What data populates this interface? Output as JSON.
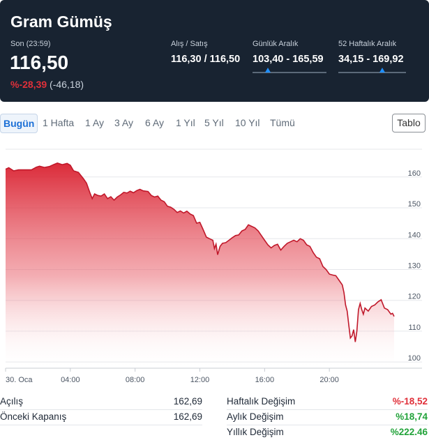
{
  "header": {
    "title": "Gram Gümüş",
    "last_label": "Son (23:59)",
    "last_price": "116,50",
    "change_pct": "%-28,39",
    "change_abs": "(-46,18)",
    "bid_ask": {
      "label": "Alış / Satış",
      "value": "116,30 / 116,50"
    },
    "daily_range": {
      "label": "Günlük Aralık",
      "value": "103,40 - 165,59",
      "position": 0.21
    },
    "week52_range": {
      "label": "52 Haftalık Aralık",
      "value": "34,15 - 169,92",
      "position": 0.65
    }
  },
  "tabs": [
    "Bugün",
    "1 Hafta",
    "1 Ay",
    "3 Ay",
    "6 Ay",
    "1 Yıl",
    "5 Yıl",
    "10 Yıl",
    "Tümü"
  ],
  "active_tab": "Bugün",
  "table_button": "Tablo",
  "footer": {
    "left": [
      {
        "label": "Açılış",
        "value": "162,69"
      },
      {
        "label": "Önceki Kapanış",
        "value": "162,69"
      }
    ],
    "right": [
      {
        "label": "Haftalık Değişim",
        "value": "%-18,52",
        "sign": "neg"
      },
      {
        "label": "Aylık Değişim",
        "value": "%18,74",
        "sign": "pos"
      },
      {
        "label": "Yıllık Değişim",
        "value": "%222.46",
        "sign": "pos"
      }
    ]
  },
  "chart_data": {
    "type": "area",
    "x_ticks": [
      "30. Oca",
      "04:00",
      "08:00",
      "12:00",
      "16:00",
      "20:00"
    ],
    "x_tick_hours": [
      0,
      4,
      8,
      12,
      16,
      20
    ],
    "y_ticks": [
      100,
      110,
      120,
      130,
      140,
      150,
      160
    ],
    "ylim": [
      98,
      169
    ],
    "xlim": [
      0,
      24
    ],
    "line_color": "#c0182a",
    "fill_color": "#e0404f",
    "grid": true,
    "points": [
      [
        0.0,
        162.5
      ],
      [
        0.2,
        163.0
      ],
      [
        0.5,
        162.0
      ],
      [
        0.8,
        162.3
      ],
      [
        1.2,
        162.3
      ],
      [
        1.6,
        162.3
      ],
      [
        1.9,
        163.2
      ],
      [
        2.1,
        163.5
      ],
      [
        2.4,
        163.1
      ],
      [
        2.7,
        163.4
      ],
      [
        3.0,
        164.1
      ],
      [
        3.2,
        164.5
      ],
      [
        3.5,
        164.0
      ],
      [
        3.8,
        164.4
      ],
      [
        4.0,
        163.8
      ],
      [
        4.2,
        162.0
      ],
      [
        4.5,
        161.5
      ],
      [
        4.8,
        159.5
      ],
      [
        5.0,
        158.0
      ],
      [
        5.2,
        155.0
      ],
      [
        5.35,
        153.0
      ],
      [
        5.5,
        154.5
      ],
      [
        5.7,
        154.0
      ],
      [
        5.9,
        153.8
      ],
      [
        6.1,
        154.5
      ],
      [
        6.3,
        153.0
      ],
      [
        6.5,
        153.6
      ],
      [
        6.7,
        152.5
      ],
      [
        6.9,
        153.5
      ],
      [
        7.1,
        154.2
      ],
      [
        7.3,
        155.0
      ],
      [
        7.5,
        154.8
      ],
      [
        7.7,
        155.4
      ],
      [
        7.9,
        154.9
      ],
      [
        8.1,
        155.6
      ],
      [
        8.3,
        156.0
      ],
      [
        8.5,
        155.5
      ],
      [
        8.8,
        155.3
      ],
      [
        9.0,
        154.0
      ],
      [
        9.2,
        153.5
      ],
      [
        9.4,
        153.8
      ],
      [
        9.6,
        152.5
      ],
      [
        9.8,
        152.0
      ],
      [
        10.0,
        150.5
      ],
      [
        10.2,
        150.2
      ],
      [
        10.4,
        149.5
      ],
      [
        10.6,
        148.5
      ],
      [
        10.8,
        149.0
      ],
      [
        11.0,
        148.3
      ],
      [
        11.2,
        148.9
      ],
      [
        11.4,
        148.0
      ],
      [
        11.6,
        147.5
      ],
      [
        11.8,
        145.0
      ],
      [
        12.0,
        145.3
      ],
      [
        12.2,
        143.0
      ],
      [
        12.4,
        140.5
      ],
      [
        12.6,
        140.0
      ],
      [
        12.8,
        139.5
      ],
      [
        12.9,
        136.8
      ],
      [
        13.0,
        138.2
      ],
      [
        13.1,
        134.8
      ],
      [
        13.25,
        137.5
      ],
      [
        13.4,
        138.5
      ],
      [
        13.6,
        138.7
      ],
      [
        13.8,
        139.5
      ],
      [
        14.0,
        140.3
      ],
      [
        14.2,
        141.0
      ],
      [
        14.4,
        141.2
      ],
      [
        14.6,
        142.5
      ],
      [
        14.8,
        143.0
      ],
      [
        15.0,
        144.5
      ],
      [
        15.2,
        144.0
      ],
      [
        15.4,
        143.5
      ],
      [
        15.6,
        142.5
      ],
      [
        15.8,
        141.0
      ],
      [
        16.0,
        139.5
      ],
      [
        16.2,
        138.0
      ],
      [
        16.4,
        137.0
      ],
      [
        16.6,
        137.8
      ],
      [
        16.8,
        138.2
      ],
      [
        17.0,
        136.3
      ],
      [
        17.2,
        137.5
      ],
      [
        17.4,
        138.5
      ],
      [
        17.6,
        139.0
      ],
      [
        17.8,
        139.5
      ],
      [
        18.0,
        139.0
      ],
      [
        18.2,
        140.0
      ],
      [
        18.4,
        139.5
      ],
      [
        18.6,
        138.0
      ],
      [
        18.8,
        137.5
      ],
      [
        19.0,
        135.5
      ],
      [
        19.2,
        134.0
      ],
      [
        19.4,
        133.5
      ],
      [
        19.6,
        131.0
      ],
      [
        19.8,
        130.0
      ],
      [
        20.0,
        128.5
      ],
      [
        20.2,
        128.2
      ],
      [
        20.4,
        128.0
      ],
      [
        20.6,
        126.5
      ],
      [
        20.8,
        125.0
      ],
      [
        20.9,
        122.5
      ],
      [
        21.0,
        118.5
      ],
      [
        21.1,
        116.5
      ],
      [
        21.2,
        112.0
      ],
      [
        21.3,
        107.8
      ],
      [
        21.4,
        108.5
      ],
      [
        21.5,
        110.5
      ],
      [
        21.6,
        106.5
      ],
      [
        21.7,
        110.0
      ],
      [
        21.8,
        117.0
      ],
      [
        21.9,
        119.0
      ],
      [
        22.0,
        117.0
      ],
      [
        22.1,
        115.5
      ],
      [
        22.2,
        117.5
      ],
      [
        22.4,
        116.5
      ],
      [
        22.6,
        118.0
      ],
      [
        22.8,
        118.5
      ],
      [
        23.0,
        119.5
      ],
      [
        23.2,
        120.2
      ],
      [
        23.4,
        117.5
      ],
      [
        23.6,
        117.0
      ],
      [
        23.8,
        115.5
      ],
      [
        23.9,
        115.8
      ],
      [
        24.0,
        114.8
      ]
    ]
  }
}
